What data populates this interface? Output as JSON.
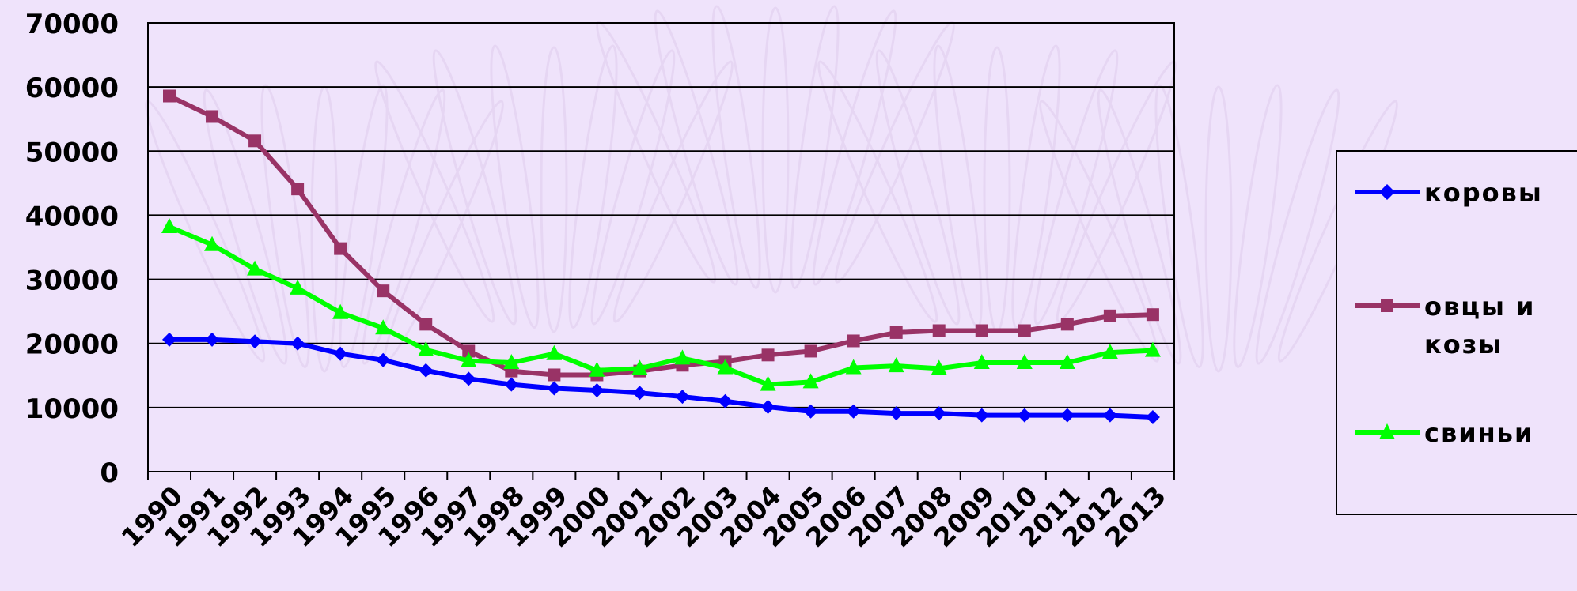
{
  "chart_data": {
    "type": "line",
    "categories": [
      "1990",
      "1991",
      "1992",
      "1993",
      "1994",
      "1995",
      "1996",
      "1997",
      "1998",
      "1999",
      "2000",
      "2001",
      "2002",
      "2003",
      "2004",
      "2005",
      "2006",
      "2007",
      "2008",
      "2009",
      "2010",
      "2011",
      "2012",
      "2013"
    ],
    "ylim": [
      0,
      70000
    ],
    "yticks": [
      0,
      10000,
      20000,
      30000,
      40000,
      50000,
      60000,
      70000
    ],
    "grid": true,
    "legend_position": "right",
    "series": [
      {
        "name": "коровы",
        "color": "#0000ff",
        "marker": "diamond",
        "values": [
          20600,
          20600,
          20300,
          20000,
          18400,
          17400,
          15800,
          14500,
          13600,
          13000,
          12700,
          12300,
          11700,
          11000,
          10100,
          9400,
          9400,
          9100,
          9100,
          8800,
          8800,
          8800,
          8800,
          8500
        ]
      },
      {
        "name": "овцы и козы",
        "color": "#993366",
        "marker": "square",
        "values": [
          58600,
          55400,
          51600,
          44100,
          34800,
          28200,
          23000,
          18800,
          15700,
          15100,
          15100,
          15700,
          16600,
          17200,
          18200,
          18800,
          20400,
          21700,
          22000,
          22000,
          22000,
          23000,
          24300,
          24500
        ]
      },
      {
        "name": "свиньи",
        "color": "#00ff00",
        "marker": "triangle",
        "values": [
          38200,
          35400,
          31600,
          28600,
          24800,
          22400,
          19000,
          17300,
          17000,
          18400,
          15800,
          16100,
          17700,
          16200,
          13600,
          14000,
          16200,
          16500,
          16100,
          17000,
          17000,
          17000,
          18600,
          18900
        ]
      }
    ]
  }
}
